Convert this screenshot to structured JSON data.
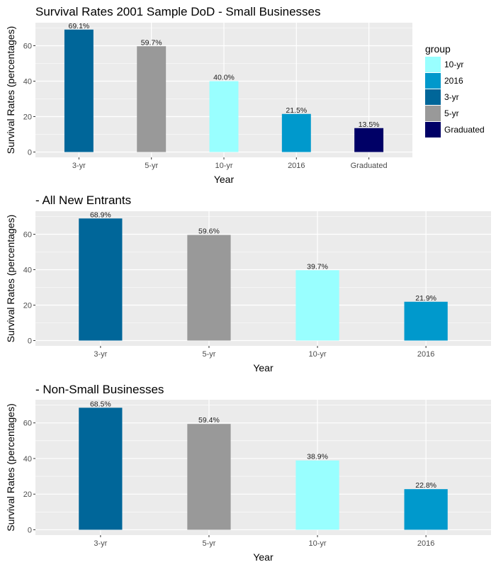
{
  "chart_data": [
    {
      "type": "bar",
      "title": "Survival Rates 2001 Sample DoD - Small Businesses",
      "xlabel": "Year",
      "ylabel": "Survival Rates (percentages)",
      "categories": [
        "3-yr",
        "5-yr",
        "10-yr",
        "2016",
        "Graduated"
      ],
      "values": [
        69.1,
        59.7,
        40.0,
        21.5,
        13.5
      ],
      "labels": [
        "69.1%",
        "59.7%",
        "40.0%",
        "21.5%",
        "13.5%"
      ],
      "ylim": [
        -3,
        73
      ],
      "yticks": [
        0,
        20,
        40,
        60
      ],
      "grid": true,
      "legend": {
        "title": "group",
        "position": "right",
        "entries": [
          {
            "label": "10-yr",
            "color": "#99FFFF"
          },
          {
            "label": "2016",
            "color": "#0099CC"
          },
          {
            "label": "3-yr",
            "color": "#006699"
          },
          {
            "label": "5-yr",
            "color": "#999999"
          },
          {
            "label": "Graduated",
            "color": "#000066"
          }
        ]
      }
    },
    {
      "type": "bar",
      "title": "- All New Entrants",
      "xlabel": "Year",
      "ylabel": "Survival Rates (percentages)",
      "categories": [
        "3-yr",
        "5-yr",
        "10-yr",
        "2016"
      ],
      "values": [
        68.9,
        59.6,
        39.7,
        21.9
      ],
      "labels": [
        "68.9%",
        "59.6%",
        "39.7%",
        "21.9%"
      ],
      "ylim": [
        -3,
        73
      ],
      "yticks": [
        0,
        20,
        40,
        60
      ],
      "grid": true
    },
    {
      "type": "bar",
      "title": "- Non-Small Businesses",
      "xlabel": "Year",
      "ylabel": "Survival Rates (percentages)",
      "categories": [
        "3-yr",
        "5-yr",
        "10-yr",
        "2016"
      ],
      "values": [
        68.5,
        59.4,
        38.9,
        22.8
      ],
      "labels": [
        "68.5%",
        "59.4%",
        "38.9%",
        "22.8%"
      ],
      "ylim": [
        -3,
        73
      ],
      "yticks": [
        0,
        20,
        40,
        60
      ],
      "grid": true
    }
  ],
  "colors": {
    "3-yr": "#006699",
    "5-yr": "#999999",
    "10-yr": "#99FFFF",
    "2016": "#0099CC",
    "Graduated": "#000066",
    "panel_background": "#EBEBEB",
    "grid": "#FFFFFF"
  }
}
